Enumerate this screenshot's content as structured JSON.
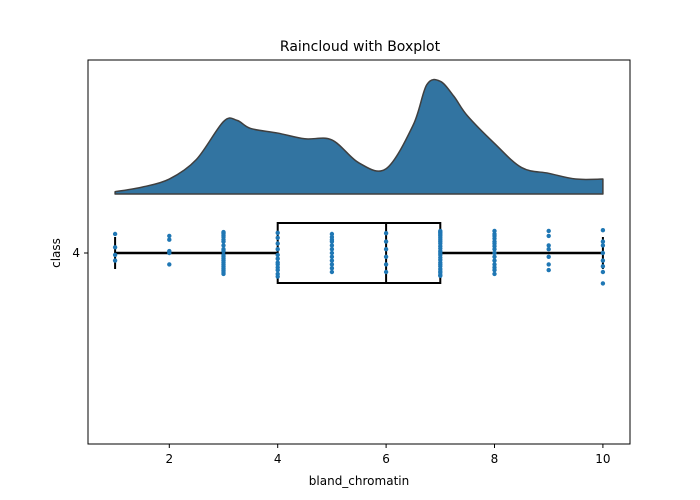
{
  "chart_data": {
    "type": "raincloud",
    "title": "Raincloud with Boxplot",
    "xlabel": "bland_chromatin",
    "ylabel": "class",
    "xlim": [
      0.5,
      10.5
    ],
    "x_ticks": [
      2,
      4,
      6,
      8,
      10
    ],
    "y_ticks": [
      "4"
    ],
    "category": "4",
    "colors": {
      "cloud_fill": "#3274a1",
      "cloud_edge": "#3f3f3f",
      "points": "#1f77b4",
      "box": "#000000"
    },
    "density": {
      "x": [
        1.0,
        1.5,
        2.0,
        2.5,
        3.0,
        3.25,
        3.5,
        4.0,
        4.5,
        5.0,
        5.5,
        6.0,
        6.5,
        6.75,
        7.0,
        7.25,
        7.5,
        8.0,
        8.5,
        9.0,
        9.5,
        10.0
      ],
      "y": [
        0.02,
        0.06,
        0.13,
        0.3,
        0.63,
        0.64,
        0.57,
        0.53,
        0.48,
        0.47,
        0.27,
        0.22,
        0.6,
        0.95,
        0.98,
        0.85,
        0.68,
        0.44,
        0.23,
        0.18,
        0.13,
        0.13
      ],
      "relative": true
    },
    "boxplot": {
      "whisker_low": 1,
      "q1": 4,
      "median": 6,
      "q3": 7,
      "whisker_high": 10
    },
    "points": [
      {
        "x": 1,
        "jitter": [
          0.5,
          0.15,
          -0.05,
          -0.2
        ]
      },
      {
        "x": 2,
        "jitter": [
          0.45,
          0.35,
          0.05,
          0.0,
          -0.3
        ]
      },
      {
        "x": 3,
        "jitter": [
          0.55,
          0.52,
          0.47,
          0.42,
          0.35,
          0.3,
          0.2,
          0.1,
          0.05,
          -0.05,
          -0.1,
          -0.15,
          -0.2,
          -0.25,
          -0.3,
          -0.35,
          -0.4,
          -0.45,
          -0.5,
          -0.55
        ]
      },
      {
        "x": 4,
        "jitter": [
          0.53,
          0.4,
          0.25,
          0.1,
          -0.05,
          -0.15,
          -0.25,
          -0.3,
          -0.38,
          -0.45,
          -0.55,
          -0.62
        ]
      },
      {
        "x": 5,
        "jitter": [
          0.5,
          0.42,
          0.35,
          0.3,
          0.2,
          0.1,
          0.0,
          -0.1,
          -0.2,
          -0.3,
          -0.4,
          -0.5
        ]
      },
      {
        "x": 6,
        "jitter": [
          0.52,
          0.3,
          0.1,
          -0.1,
          -0.3,
          -0.5
        ]
      },
      {
        "x": 7,
        "jitter": [
          0.58,
          0.55,
          0.52,
          0.48,
          0.45,
          0.4,
          0.35,
          0.3,
          0.25,
          0.18,
          0.12,
          0.05,
          0.0,
          -0.05,
          -0.12,
          -0.18,
          -0.25,
          -0.3,
          -0.35,
          -0.42,
          -0.48,
          -0.52,
          -0.58,
          -0.6
        ]
      },
      {
        "x": 8,
        "jitter": [
          0.58,
          0.5,
          0.45,
          0.38,
          0.3,
          0.25,
          0.18,
          0.1,
          0.0,
          -0.1,
          -0.2,
          -0.3,
          -0.38,
          -0.45,
          -0.55
        ]
      },
      {
        "x": 9,
        "jitter": [
          0.58,
          0.45,
          0.2,
          0.1,
          -0.1,
          -0.3,
          -0.45
        ]
      },
      {
        "x": 10,
        "jitter": [
          0.6,
          0.3,
          0.2,
          0.0,
          -0.2,
          -0.35,
          -0.5,
          -0.8
        ]
      }
    ]
  }
}
